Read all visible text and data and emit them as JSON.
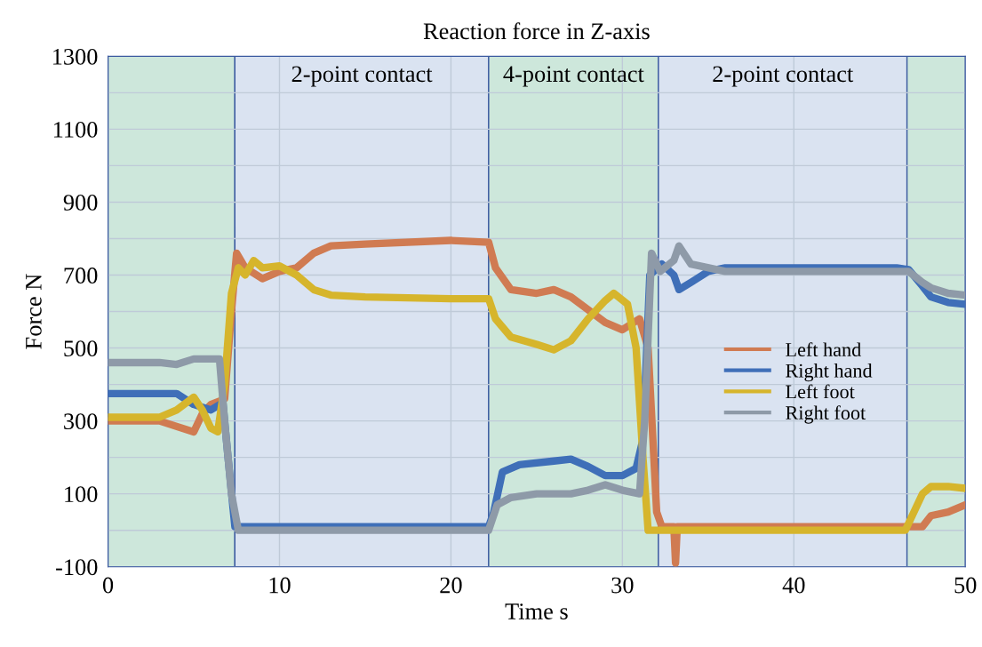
{
  "chart_data": {
    "type": "line",
    "title": "Reaction force in Z-axis",
    "xlabel": "Time s",
    "ylabel": "Force N",
    "xlim": [
      0,
      50
    ],
    "xticks": [
      0,
      10,
      20,
      30,
      40,
      50
    ],
    "ylim": [
      -100,
      1300
    ],
    "yticks": [
      -100,
      {
        "value": 0,
        "label": null
      },
      100,
      {
        "value": 200,
        "label": null
      },
      300,
      {
        "value": 400,
        "label": null
      },
      500,
      {
        "value": 600,
        "label": null
      },
      700,
      {
        "value": 800,
        "label": null
      },
      900,
      {
        "value": 1000,
        "label": null
      },
      1100,
      {
        "value": 1200,
        "label": null
      },
      1300
    ],
    "grid": true,
    "legend": "right",
    "line_style": "solid",
    "marker": "none",
    "bands": [
      {
        "axis": "x",
        "from": 0,
        "to": 7.4,
        "label": null,
        "color": "#cde7db"
      },
      {
        "axis": "x",
        "from": 7.4,
        "to": 22.2,
        "label": "2-point contact",
        "color": "#dae3f1"
      },
      {
        "axis": "x",
        "from": 22.2,
        "to": 32.1,
        "label": "4-point contact",
        "color": "#cde7db"
      },
      {
        "axis": "x",
        "from": 32.1,
        "to": 46.6,
        "label": "2-point contact",
        "color": "#dae3f1"
      },
      {
        "axis": "x",
        "from": 46.6,
        "to": 50,
        "label": null,
        "color": "#cde7db"
      }
    ],
    "series": [
      {
        "name": "Left hand",
        "color": "#d07b52",
        "x": [
          0,
          3,
          5,
          5.5,
          6,
          6.8,
          7.2,
          7.5,
          8,
          9,
          10,
          11,
          12,
          13,
          15,
          20,
          22.2,
          22.6,
          23.5,
          25,
          26,
          27,
          29,
          30,
          31,
          31.5,
          32,
          32.3,
          33,
          33.1,
          33.2,
          46,
          47.5,
          48,
          49,
          50
        ],
        "values": [
          300,
          300,
          270,
          320,
          345,
          360,
          600,
          760,
          720,
          690,
          710,
          720,
          760,
          780,
          785,
          795,
          790,
          720,
          660,
          650,
          660,
          640,
          570,
          550,
          580,
          500,
          50,
          10,
          10,
          -90,
          10,
          10,
          10,
          40,
          50,
          70
        ]
      },
      {
        "name": "Right hand",
        "color": "#3f6fb8",
        "x": [
          0,
          4,
          5,
          6,
          6.7,
          7,
          7.4,
          22.2,
          22.5,
          23,
          24,
          26,
          27,
          28,
          29,
          30,
          30.8,
          31.2,
          31.6,
          32.3,
          33,
          33.3,
          34,
          35,
          36,
          46,
          46.7,
          47.5,
          48,
          49,
          50
        ],
        "values": [
          375,
          375,
          345,
          330,
          350,
          200,
          10,
          10,
          50,
          160,
          180,
          190,
          195,
          175,
          150,
          150,
          170,
          250,
          700,
          730,
          700,
          660,
          680,
          710,
          720,
          720,
          715,
          670,
          640,
          625,
          620
        ]
      },
      {
        "name": "Left foot",
        "color": "#d6b52c",
        "x": [
          0,
          3,
          4,
          5,
          5.5,
          6,
          6.4,
          6.8,
          7.2,
          7.6,
          8,
          8.5,
          9,
          10,
          11,
          12,
          13,
          15,
          20,
          22.2,
          22.6,
          23.5,
          25,
          26,
          27,
          28,
          29,
          29.5,
          30.3,
          30.8,
          31.2,
          31.5,
          32,
          46.5,
          47,
          47.5,
          48,
          49,
          50
        ],
        "values": [
          310,
          310,
          330,
          365,
          330,
          280,
          270,
          400,
          650,
          720,
          700,
          740,
          720,
          725,
          700,
          660,
          645,
          640,
          635,
          635,
          580,
          530,
          510,
          495,
          520,
          580,
          630,
          650,
          620,
          500,
          200,
          0,
          0,
          0,
          50,
          100,
          120,
          120,
          115
        ]
      },
      {
        "name": "Right foot",
        "color": "#8e9aa8",
        "x": [
          0,
          3,
          4,
          5,
          6.5,
          6.8,
          7.2,
          7.6,
          22.2,
          22.7,
          23.5,
          25,
          27,
          28,
          29,
          30,
          31,
          31.3,
          31.7,
          32.2,
          33,
          33.3,
          34,
          36,
          46,
          46.7,
          47.5,
          48,
          49,
          50
        ],
        "values": [
          460,
          460,
          455,
          470,
          470,
          300,
          100,
          0,
          0,
          70,
          90,
          100,
          100,
          110,
          125,
          110,
          100,
          300,
          760,
          710,
          740,
          780,
          730,
          710,
          710,
          710,
          680,
          665,
          650,
          645
        ]
      }
    ]
  }
}
